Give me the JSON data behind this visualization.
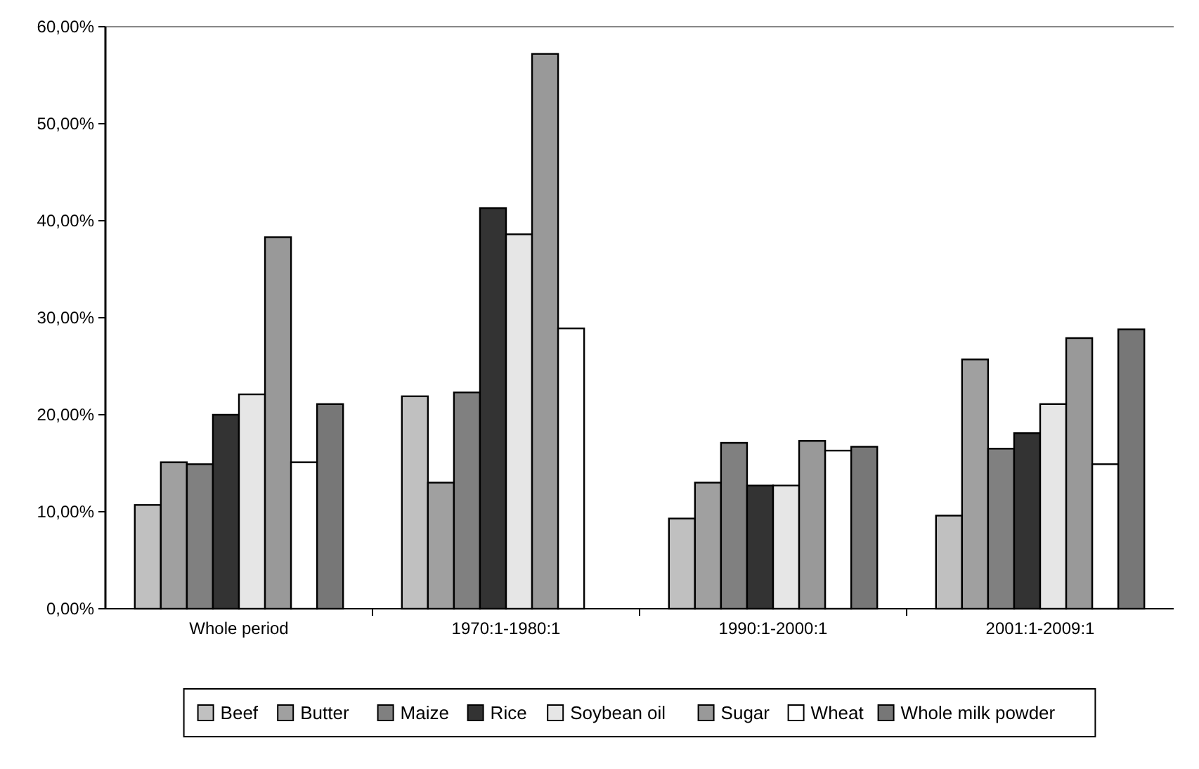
{
  "chart_data": {
    "type": "bar",
    "categories": [
      "Whole period",
      "1970:1-1980:1",
      "1990:1-2000:1",
      "2001:1-2009:1"
    ],
    "series": [
      {
        "name": "Beef",
        "color": "#c0c0c0",
        "values": [
          10.7,
          21.9,
          9.3,
          9.6
        ]
      },
      {
        "name": "Butter",
        "color": "#a0a0a0",
        "values": [
          15.1,
          13.0,
          13.0,
          25.7
        ]
      },
      {
        "name": "Maize",
        "color": "#808080",
        "values": [
          14.9,
          22.3,
          17.1,
          16.5
        ]
      },
      {
        "name": "Rice",
        "color": "#333333",
        "values": [
          20.0,
          41.3,
          12.7,
          18.1
        ]
      },
      {
        "name": "Soybean oil",
        "color": "#e6e6e6",
        "values": [
          22.1,
          38.6,
          12.7,
          21.1
        ]
      },
      {
        "name": "Sugar",
        "color": "#999999",
        "values": [
          38.3,
          57.2,
          17.3,
          27.9
        ]
      },
      {
        "name": "Wheat",
        "color": "#ffffff",
        "values": [
          15.1,
          28.9,
          16.3,
          14.9
        ]
      },
      {
        "name": "Whole milk powder",
        "color": "#777777",
        "values": [
          21.1,
          null,
          16.7,
          28.8
        ]
      }
    ],
    "ylim": [
      0,
      60
    ],
    "yticks": [
      {
        "value": 0,
        "label": "0,00%"
      },
      {
        "value": 10,
        "label": "10,00%"
      },
      {
        "value": 20,
        "label": "20,00%"
      },
      {
        "value": 30,
        "label": "30,00%"
      },
      {
        "value": 40,
        "label": "40,00%"
      },
      {
        "value": 50,
        "label": "50,00%"
      },
      {
        "value": 60,
        "label": "60,00%"
      }
    ],
    "grid": false,
    "legend": "bottom"
  }
}
